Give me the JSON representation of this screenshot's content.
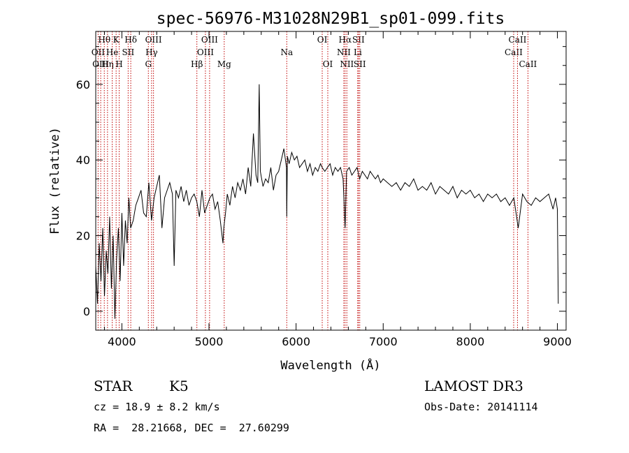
{
  "chart_data": {
    "type": "line",
    "title": "spec-56976-M31028N29B1_sp01-099.fits",
    "xlabel": "Wavelength (Å)",
    "ylabel": "Flux (relative)",
    "xlim": [
      3700,
      9100
    ],
    "ylim": [
      -5,
      74
    ],
    "xticks": [
      4000,
      5000,
      6000,
      7000,
      8000,
      9000
    ],
    "yticks": [
      0,
      20,
      40,
      60
    ],
    "series": [
      {
        "name": "flux",
        "x": [
          3700,
          3720,
          3740,
          3760,
          3780,
          3800,
          3820,
          3840,
          3860,
          3880,
          3900,
          3920,
          3940,
          3960,
          3980,
          4000,
          4020,
          4040,
          4060,
          4080,
          4100,
          4130,
          4160,
          4190,
          4220,
          4250,
          4280,
          4310,
          4340,
          4370,
          4400,
          4430,
          4460,
          4490,
          4520,
          4550,
          4580,
          4600,
          4620,
          4650,
          4680,
          4710,
          4740,
          4770,
          4800,
          4830,
          4860,
          4890,
          4920,
          4950,
          4980,
          5010,
          5040,
          5070,
          5100,
          5130,
          5160,
          5170,
          5190,
          5210,
          5240,
          5270,
          5300,
          5330,
          5360,
          5390,
          5420,
          5450,
          5480,
          5510,
          5540,
          5560,
          5577,
          5590,
          5620,
          5650,
          5680,
          5710,
          5740,
          5770,
          5800,
          5830,
          5860,
          5890,
          5893,
          5900,
          5920,
          5950,
          5980,
          6010,
          6040,
          6070,
          6100,
          6130,
          6160,
          6190,
          6220,
          6250,
          6280,
          6300,
          6330,
          6360,
          6390,
          6420,
          6450,
          6480,
          6510,
          6540,
          6563,
          6580,
          6610,
          6640,
          6670,
          6700,
          6730,
          6760,
          6790,
          6820,
          6850,
          6880,
          6910,
          6940,
          6970,
          7000,
          7050,
          7100,
          7150,
          7200,
          7250,
          7300,
          7350,
          7400,
          7450,
          7500,
          7550,
          7600,
          7650,
          7700,
          7750,
          7800,
          7850,
          7900,
          7950,
          8000,
          8050,
          8100,
          8150,
          8200,
          8250,
          8300,
          8350,
          8400,
          8450,
          8500,
          8550,
          8600,
          8650,
          8700,
          8750,
          8800,
          8850,
          8900,
          8950,
          8980,
          9000,
          9010
        ],
        "values": [
          12,
          2,
          18,
          8,
          22,
          4,
          16,
          10,
          25,
          6,
          20,
          -2,
          14,
          22,
          8,
          26,
          12,
          24,
          18,
          30,
          22,
          24,
          28,
          30,
          32,
          26,
          25,
          34,
          24,
          30,
          33,
          36,
          22,
          30,
          32,
          34,
          31,
          12,
          32,
          30,
          33,
          29,
          32,
          28,
          30,
          31,
          29,
          25,
          32,
          26,
          28,
          30,
          31,
          27,
          29,
          24,
          18,
          22,
          26,
          31,
          28,
          33,
          30,
          34,
          32,
          35,
          31,
          38,
          33,
          47,
          36,
          34,
          60,
          37,
          33,
          35,
          34,
          38,
          32,
          36,
          37,
          40,
          43,
          38,
          25,
          41,
          39,
          42,
          40,
          41,
          38,
          39,
          40,
          37,
          39,
          36,
          38,
          37,
          39,
          38,
          37,
          38,
          39,
          36,
          38,
          37,
          38,
          35,
          22,
          37,
          38,
          36,
          37,
          38,
          35,
          37,
          36,
          35,
          37,
          36,
          35,
          36,
          34,
          35,
          34,
          33,
          34,
          32,
          34,
          33,
          35,
          32,
          33,
          32,
          34,
          31,
          33,
          32,
          31,
          33,
          30,
          32,
          31,
          32,
          30,
          31,
          29,
          31,
          30,
          31,
          29,
          30,
          28,
          30,
          22,
          31,
          29,
          28,
          30,
          29,
          30,
          31,
          27,
          30,
          27,
          2
        ]
      }
    ],
    "lines": [
      {
        "name": "Hθ",
        "x": 3798,
        "row": 0
      },
      {
        "name": "OII",
        "x": 3727,
        "row": 1
      },
      {
        "name": "OIII",
        "x": 3757,
        "row": 2
      },
      {
        "name": "Hη",
        "x": 3835,
        "row": 2
      },
      {
        "name": "He",
        "x": 3889,
        "row": 1
      },
      {
        "name": "K",
        "x": 3934,
        "row": 0
      },
      {
        "name": "H",
        "x": 3969,
        "row": 2
      },
      {
        "name": "SII",
        "x": 4072,
        "row": 1
      },
      {
        "name": "Hδ",
        "x": 4102,
        "row": 0
      },
      {
        "name": "G",
        "x": 4304,
        "row": 2
      },
      {
        "name": "Hγ",
        "x": 4341,
        "row": 1
      },
      {
        "name": "OIII",
        "x": 4363,
        "row": 0
      },
      {
        "name": "Hβ",
        "x": 4861,
        "row": 2
      },
      {
        "name": "OIII",
        "x": 4959,
        "row": 1
      },
      {
        "name": "OIII",
        "x": 5007,
        "row": 0
      },
      {
        "name": "Mg",
        "x": 5175,
        "row": 2
      },
      {
        "name": "Na",
        "x": 5893,
        "row": 1
      },
      {
        "name": "OI",
        "x": 6300,
        "row": 0
      },
      {
        "name": "OI",
        "x": 6364,
        "row": 2
      },
      {
        "name": "NII",
        "x": 6548,
        "row": 1
      },
      {
        "name": "Hα",
        "x": 6563,
        "row": 0
      },
      {
        "name": "NII",
        "x": 6583,
        "row": 2
      },
      {
        "name": "Li",
        "x": 6708,
        "row": 1
      },
      {
        "name": "SII",
        "x": 6716,
        "row": 0
      },
      {
        "name": "SII",
        "x": 6731,
        "row": 2
      },
      {
        "name": "CaII",
        "x": 8498,
        "row": 1
      },
      {
        "name": "CaII",
        "x": 8542,
        "row": 0
      },
      {
        "name": "CaII",
        "x": 8662,
        "row": 2
      }
    ],
    "line_color": "#c00000"
  },
  "info": {
    "class": "STAR",
    "subclass": "K5",
    "survey": "LAMOST DR3",
    "cz": "cz = 18.9 ± 8.2 km/s",
    "obs_date": "Obs-Date: 20141114",
    "radec": "RA =  28.21668, DEC =  27.60299"
  }
}
